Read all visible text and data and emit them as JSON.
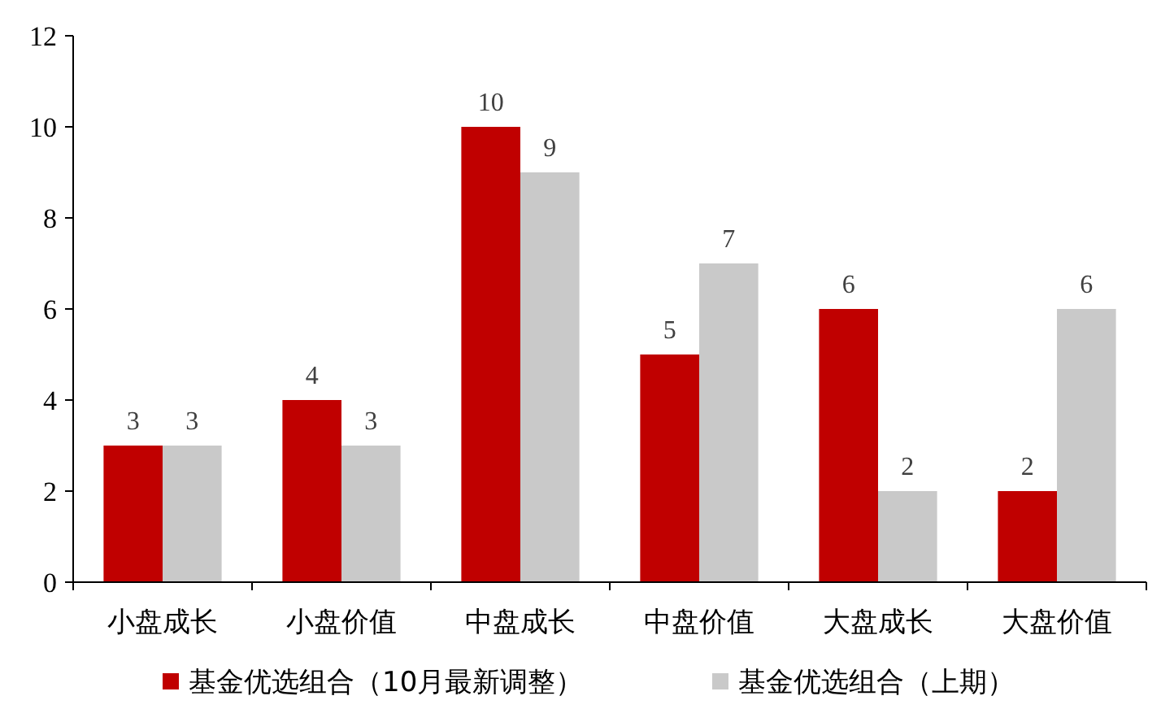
{
  "chart_data": {
    "type": "bar",
    "categories": [
      "小盘成长",
      "小盘价值",
      "中盘成长",
      "中盘价值",
      "大盘成长",
      "大盘价值"
    ],
    "series": [
      {
        "name": "基金优选组合（10月最新调整）",
        "color": "#c00000",
        "values": [
          3,
          4,
          10,
          5,
          6,
          2
        ]
      },
      {
        "name": "基金优选组合（上期）",
        "color": "#c9c9c9",
        "values": [
          3,
          3,
          9,
          7,
          2,
          6
        ]
      }
    ],
    "ylim": [
      0,
      12
    ],
    "yticks": [
      0,
      2,
      4,
      6,
      8,
      10,
      12
    ],
    "grid": false,
    "legend": "bottom",
    "data_labels": true
  }
}
